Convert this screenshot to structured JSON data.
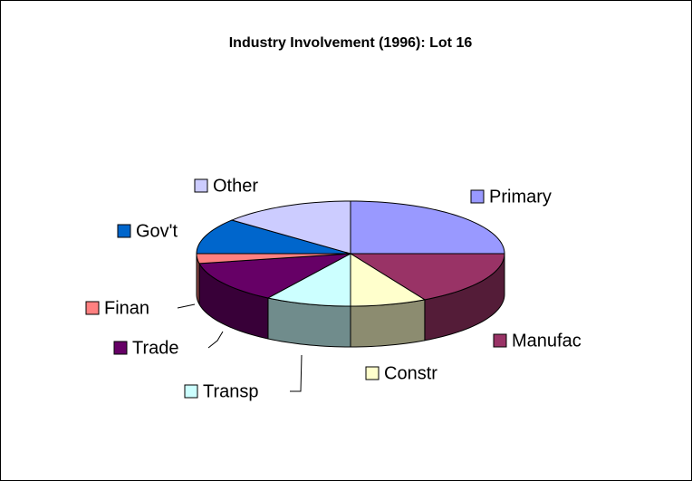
{
  "chart_data": {
    "type": "pie3d",
    "title": "Industry Involvement (1996): Lot 16",
    "categories": [
      "Primary",
      "Manufac",
      "Constr",
      "Transp",
      "Trade",
      "Finan",
      "Gov't",
      "Other"
    ],
    "values": [
      25,
      17,
      8,
      9,
      13,
      3,
      11,
      14
    ],
    "colors": [
      "#9999ff",
      "#993366",
      "#ffffcc",
      "#ccffff",
      "#660066",
      "#ff8080",
      "#0066cc",
      "#ccccff"
    ]
  }
}
